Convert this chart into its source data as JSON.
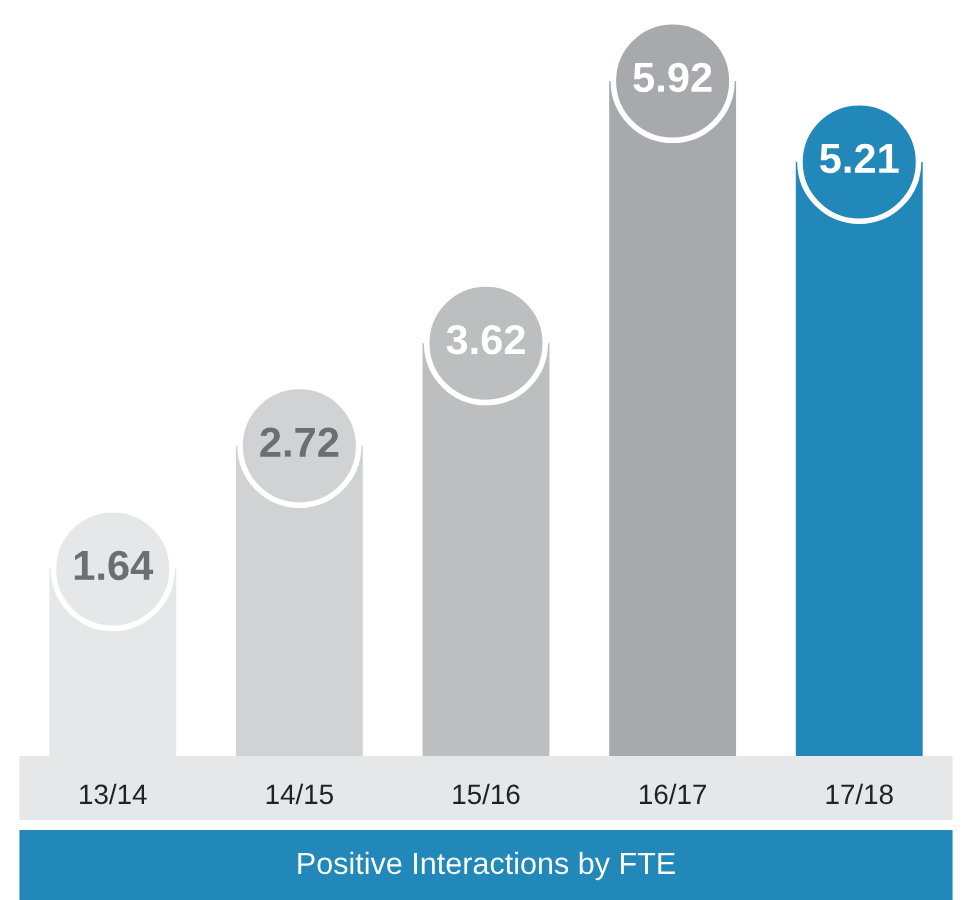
{
  "chart_data": {
    "type": "bar",
    "title": "Positive Interactions by FTE",
    "categories": [
      "13/14",
      "14/15",
      "15/16",
      "16/17",
      "17/18"
    ],
    "values": [
      1.64,
      2.72,
      3.62,
      5.92,
      5.21
    ],
    "colors": [
      "#e6e7e8",
      "#d1d2d4",
      "#bcbec0",
      "#a7a9ac",
      "#2287b9"
    ],
    "data_labels": true,
    "grid": false,
    "legend": false
  }
}
